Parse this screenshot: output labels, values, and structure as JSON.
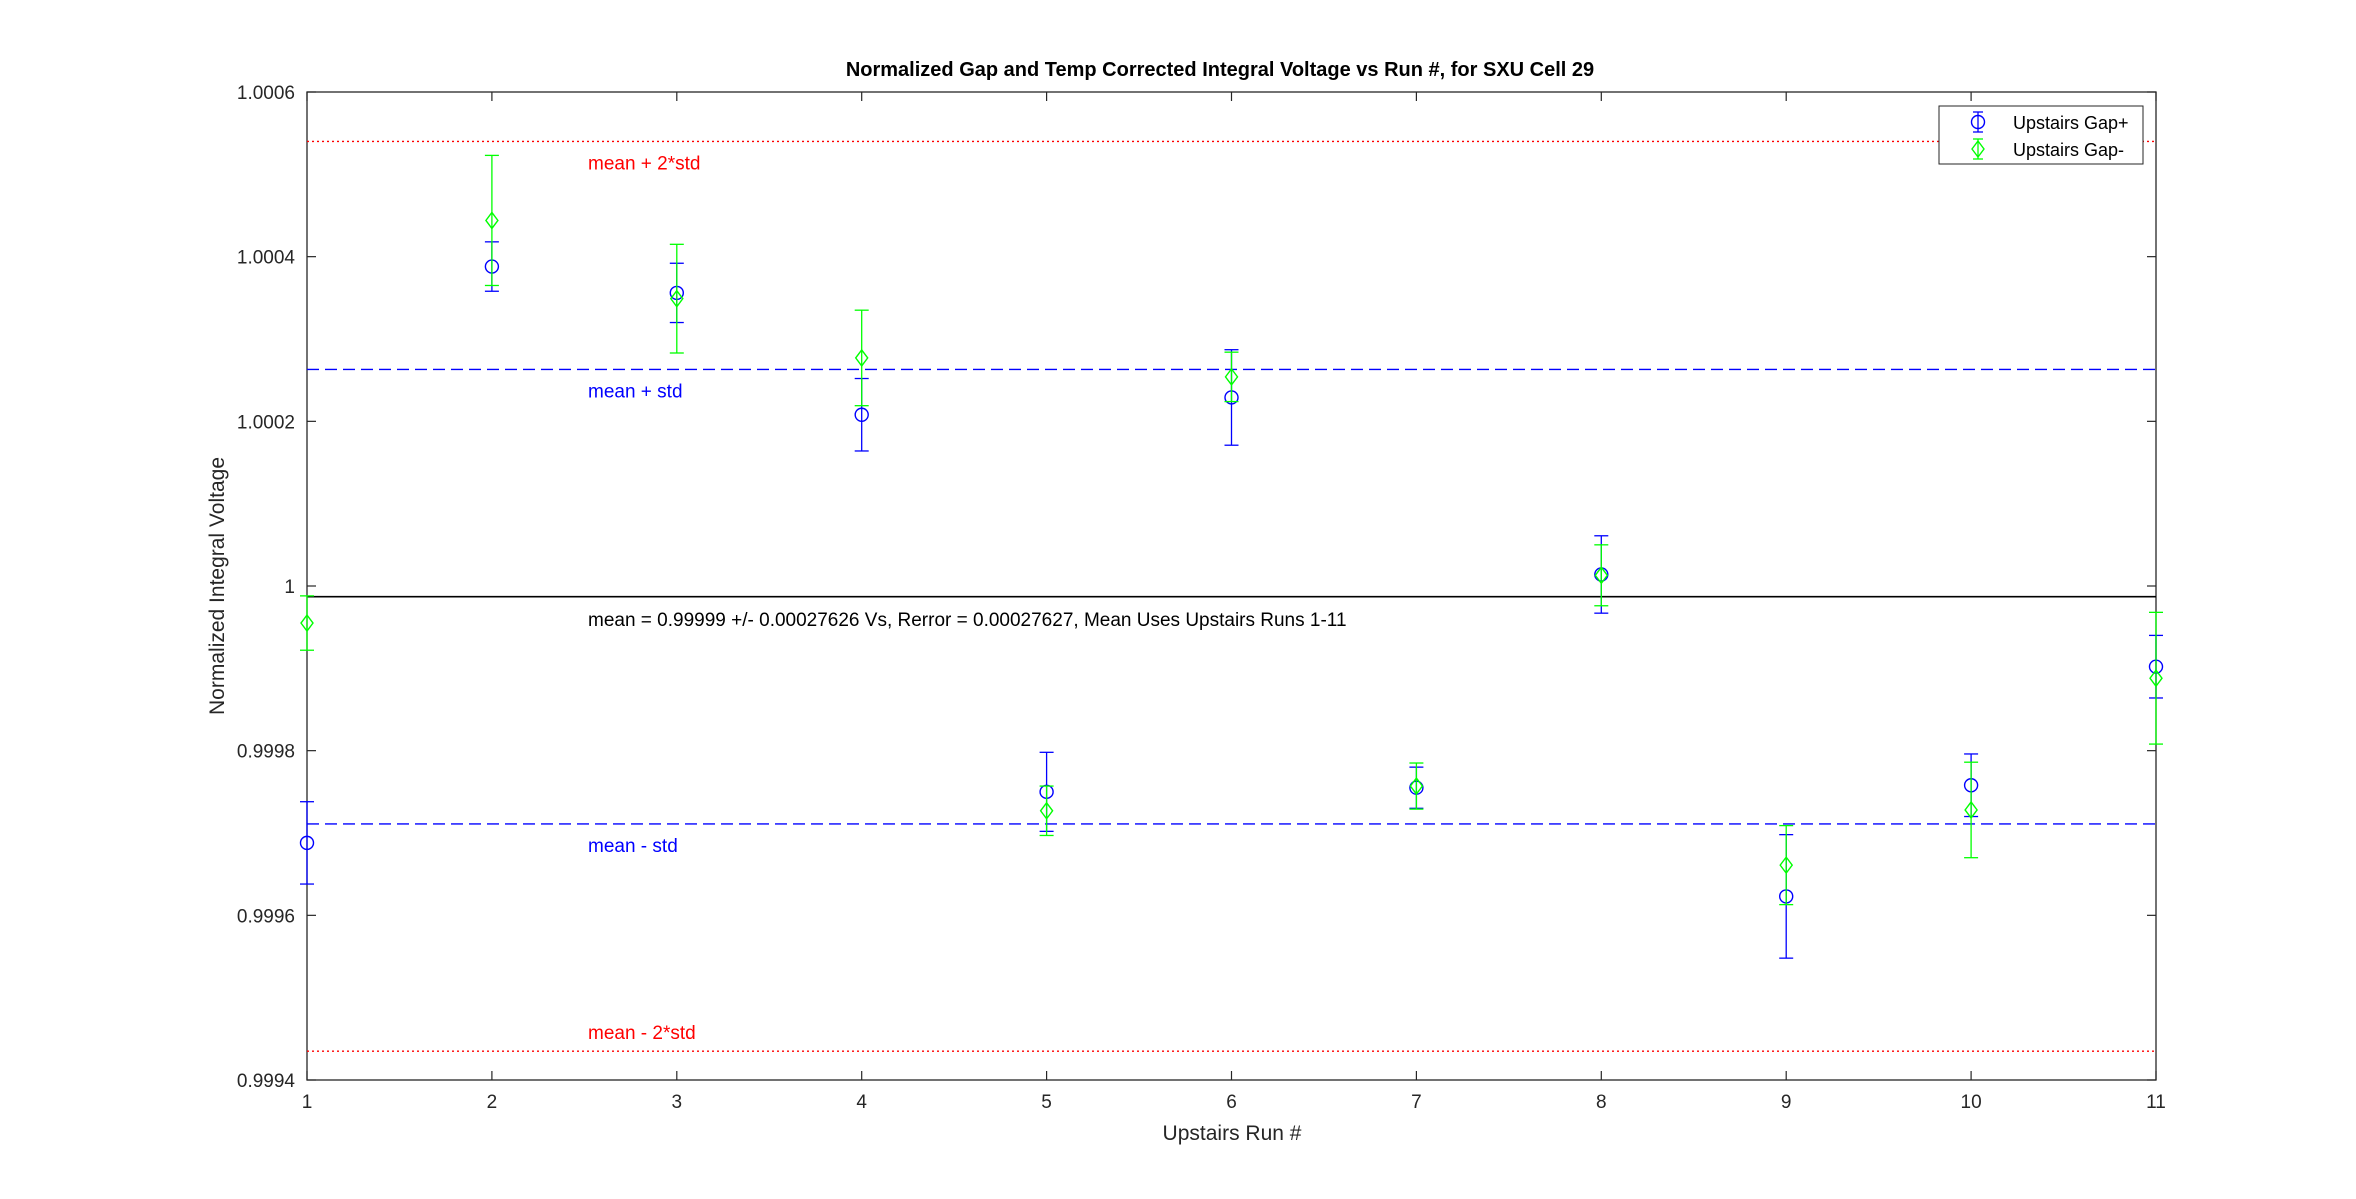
{
  "chart_data": {
    "type": "scatter",
    "title": "Normalized Gap and Temp Corrected Integral Voltage vs Run #, for SXU Cell 29",
    "xlabel": "Upstairs Run #",
    "ylabel": "Normalized Integral Voltage",
    "xlim": [
      1,
      11
    ],
    "ylim": [
      0.9994,
      1.0006
    ],
    "xticks": [
      1,
      2,
      3,
      4,
      5,
      6,
      7,
      8,
      9,
      10,
      11
    ],
    "yticks": [
      0.9994,
      0.9996,
      0.9998,
      1,
      1.0002,
      1.0004,
      1.0006
    ],
    "ytick_labels": [
      "0.9994",
      "0.9996",
      "0.9998",
      "1",
      "1.0002",
      "1.0004",
      "1.0006"
    ],
    "legend_position": "top-right",
    "series": [
      {
        "name": "Upstairs Gap+",
        "color": "#0000ff",
        "marker": "circle",
        "x": [
          1,
          2,
          3,
          4,
          5,
          6,
          7,
          8,
          9,
          10,
          11
        ],
        "y": [
          0.999688,
          1.000388,
          1.000356,
          1.000208,
          0.99975,
          1.000229,
          0.999755,
          1.000014,
          0.999623,
          0.999758,
          0.999902
        ],
        "err": [
          5e-05,
          3e-05,
          3.6e-05,
          4.4e-05,
          4.8e-05,
          5.8e-05,
          2.5e-05,
          4.7e-05,
          7.5e-05,
          3.8e-05,
          3.8e-05
        ]
      },
      {
        "name": "Upstairs Gap-",
        "color": "#00ff00",
        "marker": "diamond",
        "x": [
          1,
          2,
          3,
          4,
          5,
          6,
          7,
          8,
          9,
          10,
          11
        ],
        "y": [
          0.999955,
          1.000444,
          1.000349,
          1.000277,
          0.999727,
          1.000254,
          0.999757,
          1.000013,
          0.999661,
          0.999728,
          0.999888
        ],
        "err": [
          3.3e-05,
          7.9e-05,
          6.6e-05,
          5.8e-05,
          3e-05,
          3e-05,
          2.8e-05,
          3.7e-05,
          4.8e-05,
          5.8e-05,
          8e-05
        ]
      }
    ],
    "reference_lines": [
      {
        "value": 1.00054,
        "label": "mean + 2*std",
        "color": "#ff0000",
        "style": "dotted"
      },
      {
        "value": 1.000263,
        "label": "mean + std",
        "color": "#0000ff",
        "style": "dashed"
      },
      {
        "value": 0.999987,
        "label": "",
        "color": "#000000",
        "style": "solid"
      },
      {
        "value": 0.999711,
        "label": "mean - std",
        "color": "#0000ff",
        "style": "dashed"
      },
      {
        "value": 0.999435,
        "label": "mean - 2*std",
        "color": "#ff0000",
        "style": "dotted"
      }
    ],
    "annotation": "mean = 0.99999 +/- 0.00027626 Vs, Rerror = 0.00027627, Mean Uses Upstairs Runs 1-11"
  }
}
